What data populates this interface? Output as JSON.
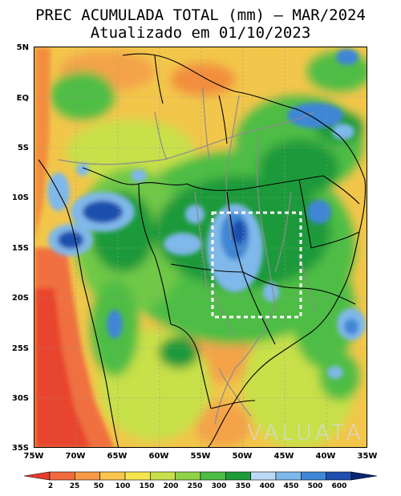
{
  "title": {
    "line1": "PREC ACUMULADA TOTAL (mm) – MAR/2024",
    "line2": "Atualizado em 01/10/2023"
  },
  "map": {
    "lat_labels": [
      "5N",
      "EQ",
      "5S",
      "10S",
      "15S",
      "20S",
      "25S",
      "30S",
      "35S"
    ],
    "lon_labels": [
      "75W",
      "70W",
      "65W",
      "60W",
      "55W",
      "50W",
      "45W",
      "40W",
      "35W"
    ],
    "watermark": "VALUATA",
    "highlight_box": "dashed-white-rectangle"
  },
  "legend": {
    "labels": [
      "2",
      "25",
      "50",
      "100",
      "150",
      "200",
      "250",
      "300",
      "350",
      "400",
      "450",
      "500",
      "600"
    ],
    "colors": [
      "#e83b2a",
      "#f26a3c",
      "#f79a46",
      "#fbc64e",
      "#f5e64f",
      "#c8e04a",
      "#8fd24a",
      "#4dbd45",
      "#1f9a3a",
      "#bcd9f5",
      "#7fb8ea",
      "#3f86d6",
      "#1e4fae",
      "#0b2470"
    ]
  }
}
